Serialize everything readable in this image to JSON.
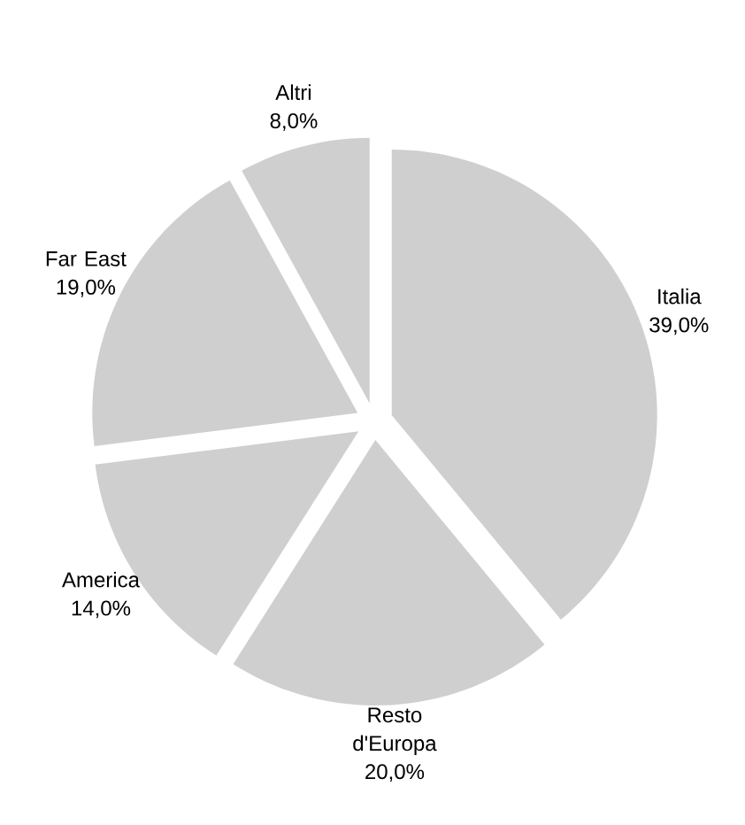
{
  "chart_data": {
    "type": "pie",
    "categories": [
      "Italia",
      "Resto d'Europa",
      "America",
      "Far East",
      "Altri"
    ],
    "values": [
      39.0,
      20.0,
      14.0,
      19.0,
      8.0
    ],
    "value_labels": [
      "39,0%",
      "20,0%",
      "14,0%",
      "19,0%",
      "8,0%"
    ],
    "colors": [
      "#cfcfcf",
      "#cfcfcf",
      "#cfcfcf",
      "#cfcfcf",
      "#cfcfcf"
    ]
  }
}
